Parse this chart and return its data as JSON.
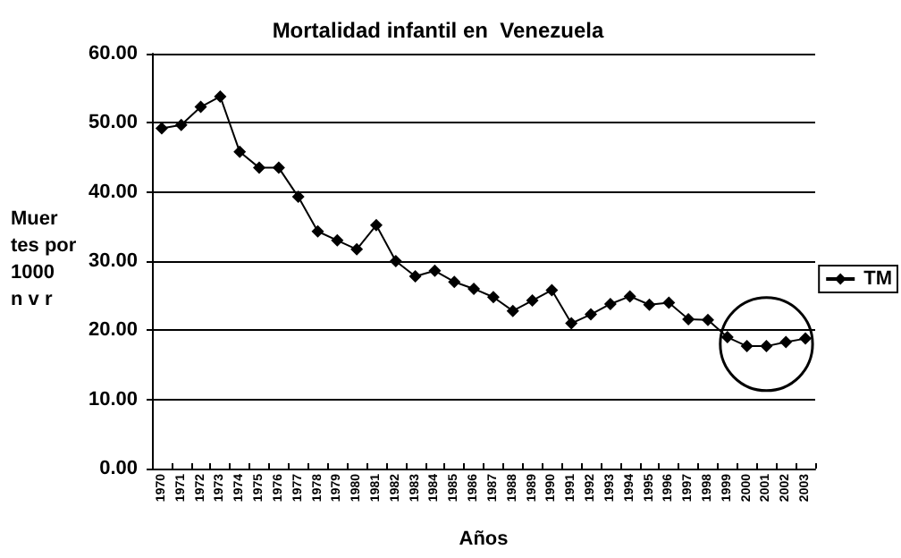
{
  "chart_data": {
    "type": "line",
    "title": "Mortalidad infantil en  Venezuela",
    "xlabel": "Años",
    "ylabel": "Muer\ntes por\n1000\nn v r",
    "categories": [
      "1970",
      "1971",
      "1972",
      "1973",
      "1974",
      "1975",
      "1976",
      "1977",
      "1978",
      "1979",
      "1980",
      "1981",
      "1982",
      "1983",
      "1984",
      "1985",
      "1986",
      "1987",
      "1988",
      "1989",
      "1990",
      "1991",
      "1992",
      "1993",
      "1994",
      "1995",
      "1996",
      "1997",
      "1998",
      "1999",
      "2000",
      "2001",
      "2002",
      "2003"
    ],
    "series": [
      {
        "name": "TM",
        "color": "#000000",
        "values": [
          49.2,
          49.7,
          52.3,
          53.8,
          45.8,
          43.5,
          43.5,
          39.3,
          34.3,
          33.0,
          31.7,
          35.2,
          30.0,
          27.8,
          28.6,
          27.0,
          26.0,
          24.8,
          22.8,
          24.3,
          25.8,
          21.0,
          22.3,
          23.8,
          24.9,
          23.7,
          24.0,
          21.6,
          21.5,
          19.0,
          17.7,
          17.7,
          18.3,
          18.8
        ]
      }
    ],
    "ylim": [
      0,
      60
    ],
    "yticks": [
      {
        "value": 0,
        "label": "0.00"
      },
      {
        "value": 10,
        "label": "10.00"
      },
      {
        "value": 20,
        "label": "20.00"
      },
      {
        "value": 30,
        "label": "30.00"
      },
      {
        "value": 40,
        "label": "40.00"
      },
      {
        "value": 50,
        "label": "50.00"
      },
      {
        "value": 60,
        "label": "60.00"
      }
    ],
    "grid": "y",
    "legend": "right",
    "marker": "diamond",
    "line_style": "solid"
  }
}
